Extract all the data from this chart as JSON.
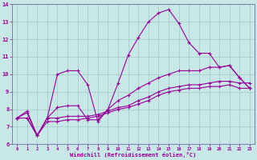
{
  "xlabel": "Windchill (Refroidissement éolien,°C)",
  "xlim": [
    -0.5,
    23.5
  ],
  "ylim": [
    6,
    14
  ],
  "xticks": [
    0,
    1,
    2,
    3,
    4,
    5,
    6,
    7,
    8,
    9,
    10,
    11,
    12,
    13,
    14,
    15,
    16,
    17,
    18,
    19,
    20,
    21,
    22,
    23
  ],
  "yticks": [
    6,
    7,
    8,
    9,
    10,
    11,
    12,
    13,
    14
  ],
  "background_color": "#c8e8e8",
  "grid_color": "#a0c8c8",
  "line_color": "#990099",
  "curves": [
    {
      "x": [
        0,
        1,
        2,
        3,
        4,
        5,
        6,
        7,
        8,
        9,
        10,
        11,
        12,
        13,
        14,
        15,
        16,
        17,
        18,
        19,
        20,
        21,
        22,
        23
      ],
      "y": [
        7.5,
        7.9,
        6.5,
        7.5,
        10.0,
        10.2,
        10.2,
        9.4,
        7.3,
        8.0,
        9.5,
        11.1,
        12.1,
        13.0,
        13.5,
        13.7,
        12.9,
        11.8,
        11.2,
        11.2,
        10.4,
        10.5,
        9.8,
        9.2
      ]
    },
    {
      "x": [
        0,
        1,
        2,
        3,
        4,
        5,
        6,
        7,
        8,
        9,
        10,
        11,
        12,
        13,
        14,
        15,
        16,
        17,
        18,
        19,
        20,
        21,
        22,
        23
      ],
      "y": [
        7.5,
        7.5,
        6.5,
        7.3,
        7.3,
        7.4,
        7.4,
        7.5,
        7.6,
        7.8,
        8.0,
        8.1,
        8.3,
        8.5,
        8.8,
        9.0,
        9.1,
        9.2,
        9.2,
        9.3,
        9.3,
        9.4,
        9.2,
        9.2
      ]
    },
    {
      "x": [
        0,
        1,
        2,
        3,
        4,
        5,
        6,
        7,
        8,
        9,
        10,
        11,
        12,
        13,
        14,
        15,
        16,
        17,
        18,
        19,
        20,
        21,
        22,
        23
      ],
      "y": [
        7.5,
        7.5,
        6.5,
        7.5,
        7.5,
        7.6,
        7.6,
        7.6,
        7.7,
        7.9,
        8.1,
        8.2,
        8.5,
        8.7,
        9.0,
        9.2,
        9.3,
        9.4,
        9.4,
        9.5,
        9.6,
        9.6,
        9.5,
        9.5
      ]
    },
    {
      "x": [
        0,
        1,
        2,
        3,
        4,
        5,
        6,
        7,
        8,
        9,
        10,
        11,
        12,
        13,
        14,
        15,
        16,
        17,
        18,
        19,
        20,
        21,
        22,
        23
      ],
      "y": [
        7.5,
        7.8,
        6.5,
        7.5,
        8.1,
        8.2,
        8.2,
        7.4,
        7.4,
        8.0,
        8.5,
        8.8,
        9.2,
        9.5,
        9.8,
        10.0,
        10.2,
        10.2,
        10.2,
        10.4,
        10.4,
        10.5,
        9.8,
        9.2
      ]
    }
  ]
}
